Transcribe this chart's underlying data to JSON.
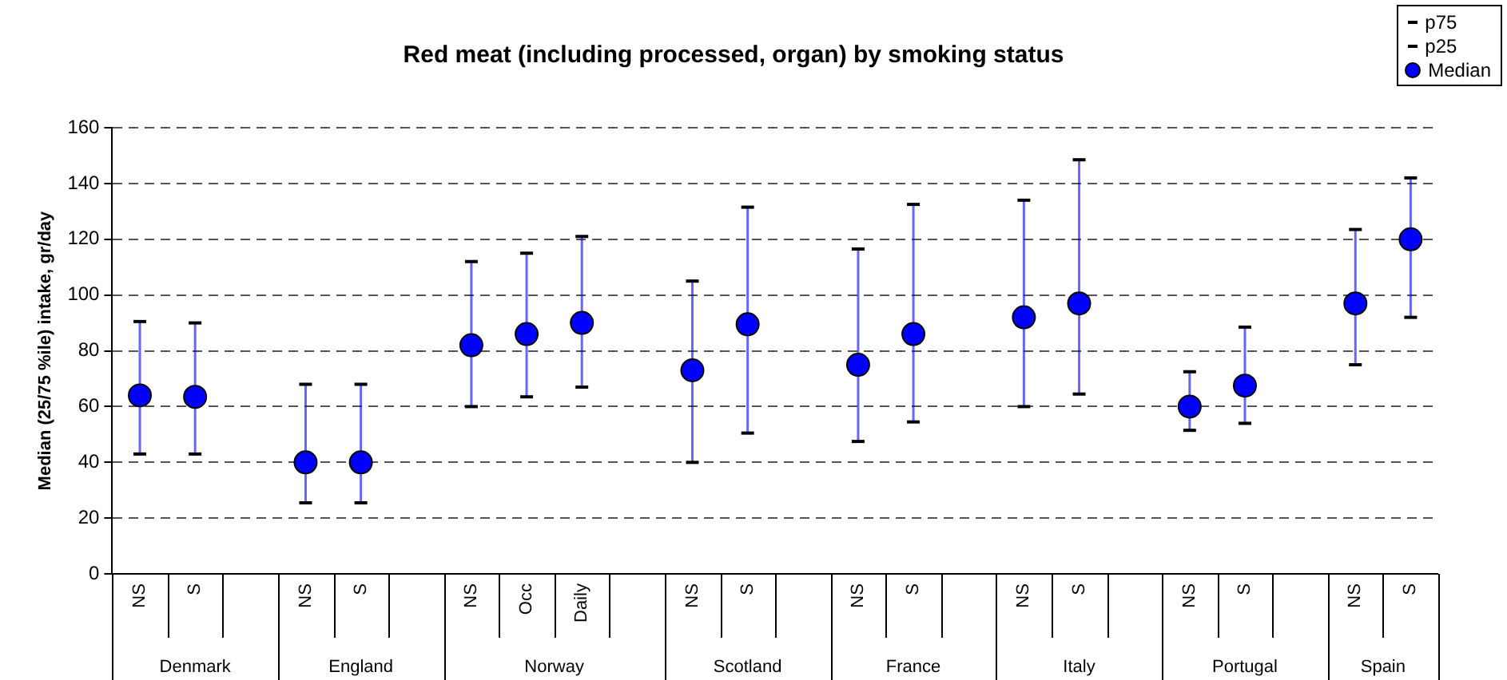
{
  "chart_data": {
    "type": "scatter",
    "title": "Red meat (including processed, organ) by smoking status",
    "ylabel": "Median (25/75 %ile) intake, gr/day",
    "categories": [
      "NS",
      "S",
      null,
      "NS",
      "S",
      null,
      "NS",
      "Occ",
      "Daily",
      null,
      "NS",
      "S",
      null,
      "NS",
      "S",
      null,
      "NS",
      "S",
      null,
      "NS",
      "S",
      null,
      "NS",
      "S"
    ],
    "annotations": [
      "Denmark",
      "England",
      "Norway",
      "Scotland",
      "France",
      "Italy",
      "Portugal",
      "Spain",
      "p75",
      "p25"
    ],
    "series": [
      {
        "name": "Median",
        "color": "#0000ff",
        "values": [
          64,
          63.5,
          null,
          40,
          40,
          null,
          82,
          86,
          90,
          null,
          73,
          89.5,
          null,
          75,
          86,
          null,
          92,
          97,
          null,
          60,
          67.5,
          null,
          97,
          120
        ],
        "errors": [
          [
            43,
            90.5
          ],
          [
            43,
            90
          ],
          null,
          [
            25.5,
            68
          ],
          [
            25.5,
            68
          ],
          null,
          [
            60,
            112
          ],
          [
            63.5,
            115
          ],
          [
            67,
            121
          ],
          null,
          [
            40,
            105
          ],
          [
            50.5,
            131.5
          ],
          null,
          [
            47.5,
            116.5
          ],
          [
            54.5,
            132.5
          ],
          null,
          [
            60,
            134
          ],
          [
            64.5,
            148.5
          ],
          null,
          [
            51.5,
            72.5
          ],
          [
            54,
            88.5
          ],
          null,
          [
            75,
            123.5
          ],
          [
            92,
            142
          ]
        ]
      }
    ],
    "marker": "circle",
    "ylim": [
      0,
      160
    ],
    "yticks": [
      0,
      20,
      40,
      60,
      80,
      100,
      120,
      140,
      160
    ],
    "grid": "y",
    "legend": "top right"
  }
}
